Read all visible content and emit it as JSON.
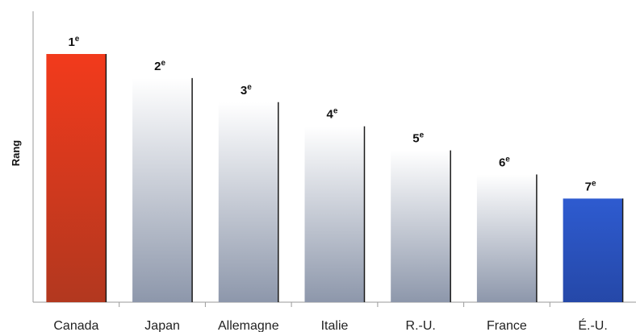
{
  "chart_data": {
    "type": "bar",
    "title": "",
    "xlabel": "",
    "ylabel": "Rang",
    "categories": [
      "Canada",
      "Japan",
      "Allemagne",
      "Italie",
      "R.-U.",
      "France",
      "É.-U."
    ],
    "values": [
      7,
      6,
      5,
      4,
      3,
      2,
      1
    ],
    "data_labels": [
      {
        "num": "1",
        "sup": "e"
      },
      {
        "num": "2",
        "sup": "e"
      },
      {
        "num": "3",
        "sup": "e"
      },
      {
        "num": "4",
        "sup": "e"
      },
      {
        "num": "5",
        "sup": "e"
      },
      {
        "num": "6",
        "sup": "e"
      },
      {
        "num": "7",
        "sup": "e"
      }
    ],
    "highlight_colors": {
      "Canada": "#d43a1e",
      "É.-U.": "#2d55c0"
    },
    "default_color": "#c6ccd8",
    "ylim": [
      -3.3,
      7
    ],
    "grid": false,
    "legend": "none"
  }
}
